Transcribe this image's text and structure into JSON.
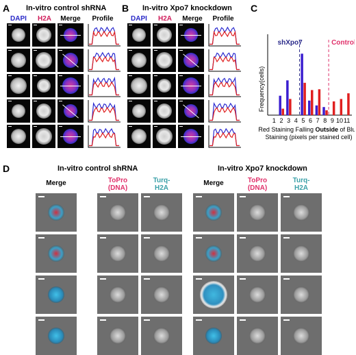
{
  "panel_A": {
    "letter": "A",
    "title": "In-vitro control shRNA",
    "columns": [
      "DAPI",
      "H2A",
      "Merge",
      "Profile"
    ],
    "column_colors": [
      "#2a2ac8",
      "#d01c5a",
      "#000000",
      "#000000"
    ],
    "rows": 5
  },
  "panel_B": {
    "letter": "B",
    "title": "In-vitro Xpo7 knockdown",
    "columns": [
      "DAPI",
      "H2A",
      "Merge",
      "Profile"
    ],
    "column_colors": [
      "#2a2ac8",
      "#d01c5a",
      "#000000",
      "#000000"
    ],
    "rows": 5
  },
  "panel_C": {
    "letter": "C",
    "chart_data": {
      "type": "bar",
      "categories": [
        "1",
        "2",
        "3",
        "4",
        "5",
        "6",
        "7",
        "8",
        "9",
        "10",
        "11"
      ],
      "series": [
        {
          "name": "shXpo7",
          "color": "#3b1fd0",
          "values": [
            0,
            0.24,
            0.43,
            0,
            0.76,
            0.18,
            0.12,
            0.1,
            0,
            0,
            0
          ]
        },
        {
          "name": "Control",
          "color": "#e02020",
          "values": [
            0,
            0.08,
            0.2,
            0,
            0.4,
            0.31,
            0.32,
            0.06,
            0.17,
            0.2,
            0.27
          ]
        }
      ],
      "ylabel": "Frequency(cells)",
      "xlabel_line1": "Red Staining Falling",
      "xlabel_bold": "Outside",
      "xlabel_line1_end": "of Blue",
      "xlabel_line2": "Staining (pixels per stained cell)",
      "ylim": [
        0,
        1
      ],
      "reference_lines": [
        {
          "series": "shXpo7",
          "x": 4.5,
          "color": "#2a2a8a",
          "style": "dashed"
        },
        {
          "series": "Control",
          "x": 8.5,
          "color": "#e0306a",
          "style": "dashed"
        }
      ]
    }
  },
  "panel_D": {
    "letter": "D",
    "left": {
      "title": "In-vitro control shRNA",
      "columns": [
        {
          "line1": "Merge",
          "line2": "",
          "color": "#000000"
        },
        {
          "line1": "ToPro",
          "line2": "(DNA)",
          "color": "#e0306a"
        },
        {
          "line1": "Turq-",
          "line2": "H2A",
          "color": "#3aa0a8"
        }
      ],
      "rows": 4
    },
    "right": {
      "title": "In-vitro Xpo7 knockdown",
      "columns": [
        {
          "line1": "Merge",
          "line2": "",
          "color": "#000000"
        },
        {
          "line1": "ToPro",
          "line2": "(DNA)",
          "color": "#e0306a"
        },
        {
          "line1": "Turq-",
          "line2": "H2A",
          "color": "#3aa0a8"
        }
      ],
      "rows": 4
    }
  }
}
